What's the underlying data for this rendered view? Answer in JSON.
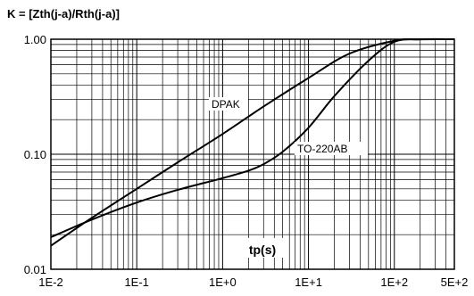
{
  "chart_data": {
    "type": "line",
    "title": "K = [Zth(j-a)/Rth(j-a)]",
    "xlabel": "tp(s)",
    "ylabel": "",
    "x_scale": "log",
    "y_scale": "log",
    "xlim": [
      0.01,
      500
    ],
    "ylim": [
      0.01,
      1
    ],
    "grid": true,
    "x_ticks": [
      {
        "value": 0.01,
        "label": "1E-2"
      },
      {
        "value": 0.1,
        "label": "1E-1"
      },
      {
        "value": 1,
        "label": "1E+0"
      },
      {
        "value": 10,
        "label": "1E+1"
      },
      {
        "value": 100,
        "label": "1E+2"
      },
      {
        "value": 500,
        "label": "5E+2"
      }
    ],
    "y_ticks": [
      {
        "value": 0.01,
        "label": "0.01"
      },
      {
        "value": 0.1,
        "label": "0.10"
      },
      {
        "value": 1,
        "label": "1.00"
      }
    ],
    "series": [
      {
        "name": "DPAK",
        "x": [
          0.01,
          0.03,
          0.1,
          0.3,
          1,
          3,
          10,
          30,
          100,
          200,
          500
        ],
        "y": [
          0.016,
          0.028,
          0.05,
          0.085,
          0.15,
          0.26,
          0.46,
          0.75,
          0.97,
          0.998,
          1.0
        ]
      },
      {
        "name": "TO-220AB",
        "x": [
          0.01,
          0.03,
          0.1,
          0.3,
          1,
          2,
          3,
          5,
          10,
          20,
          50,
          100,
          200,
          500
        ],
        "y": [
          0.019,
          0.027,
          0.038,
          0.049,
          0.062,
          0.072,
          0.082,
          0.105,
          0.17,
          0.32,
          0.65,
          0.95,
          0.998,
          1.0
        ]
      }
    ]
  }
}
